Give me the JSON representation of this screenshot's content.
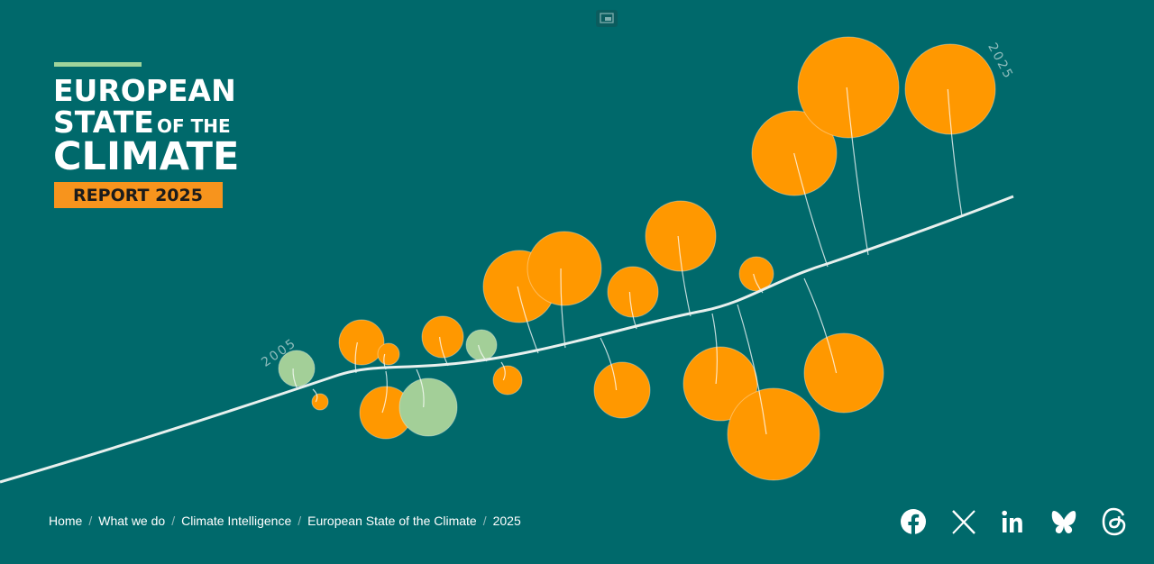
{
  "logo": {
    "line1": "EUROPEAN",
    "line2": "STATE",
    "line2_small": "OF THE",
    "line3": "CLIMATE",
    "badge": "REPORT 2025"
  },
  "timeline": {
    "start": "2005",
    "end": "2025"
  },
  "breadcrumb": [
    "Home",
    "What we do",
    "Climate Intelligence",
    "European State of the Climate",
    "2025"
  ]
}
